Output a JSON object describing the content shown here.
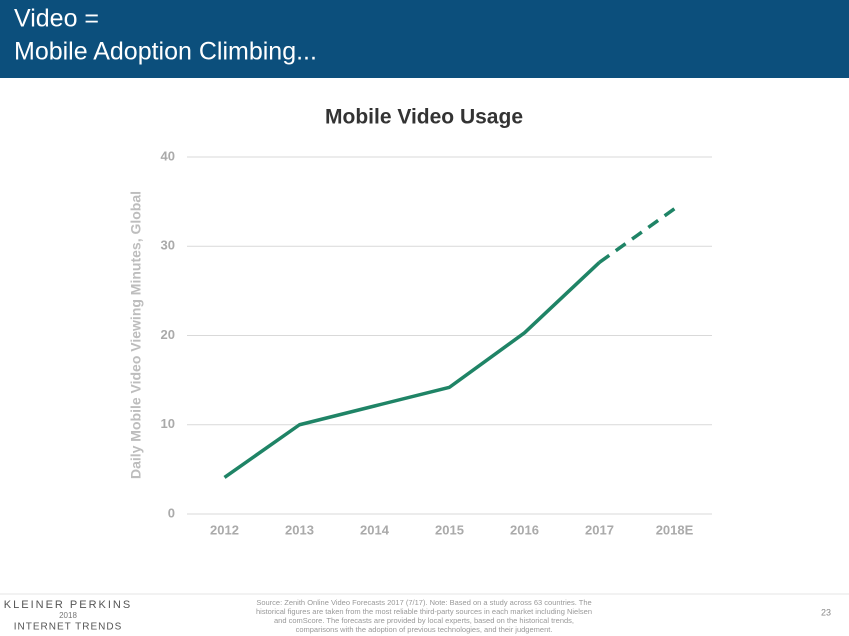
{
  "header": {
    "title_lines": [
      "Video =",
      "Mobile Adoption Climbing..."
    ]
  },
  "chart_data": {
    "type": "line",
    "title": "Mobile Video Usage",
    "y_label": "Daily Mobile Video Viewing Minutes, Global",
    "categories": [
      "2012",
      "2013",
      "2014",
      "2015",
      "2016",
      "2017",
      "2018E"
    ],
    "series": [
      {
        "color": "#1f8466",
        "dashed": false,
        "values": [
          4.1,
          10,
          12.1,
          14.2,
          20.3,
          28.2,
          null
        ]
      },
      {
        "color": "#1f8466",
        "dashed": true,
        "values": [
          null,
          null,
          null,
          null,
          null,
          28.2,
          34.2
        ]
      }
    ],
    "ylim": [
      0,
      40
    ],
    "yticks": [
      0,
      10,
      20,
      30,
      40
    ],
    "grid": true
  },
  "footer": {
    "logo_lines": [
      "KLEINER PERKINS",
      "2018",
      "INTERNET TRENDS"
    ],
    "source_lines": [
      "Source: Zenith Online Video Forecasts 2017 (7/17).  Note: Based on a study across 63 countries. The",
      "historical figures are taken from the most reliable third-party sources in each market including Nielsen",
      "and comScore. The forecasts are provided by local experts, based on the historical trends,",
      "comparisons with the adoption of previous technologies, and their judgement."
    ],
    "page_number": "23"
  }
}
